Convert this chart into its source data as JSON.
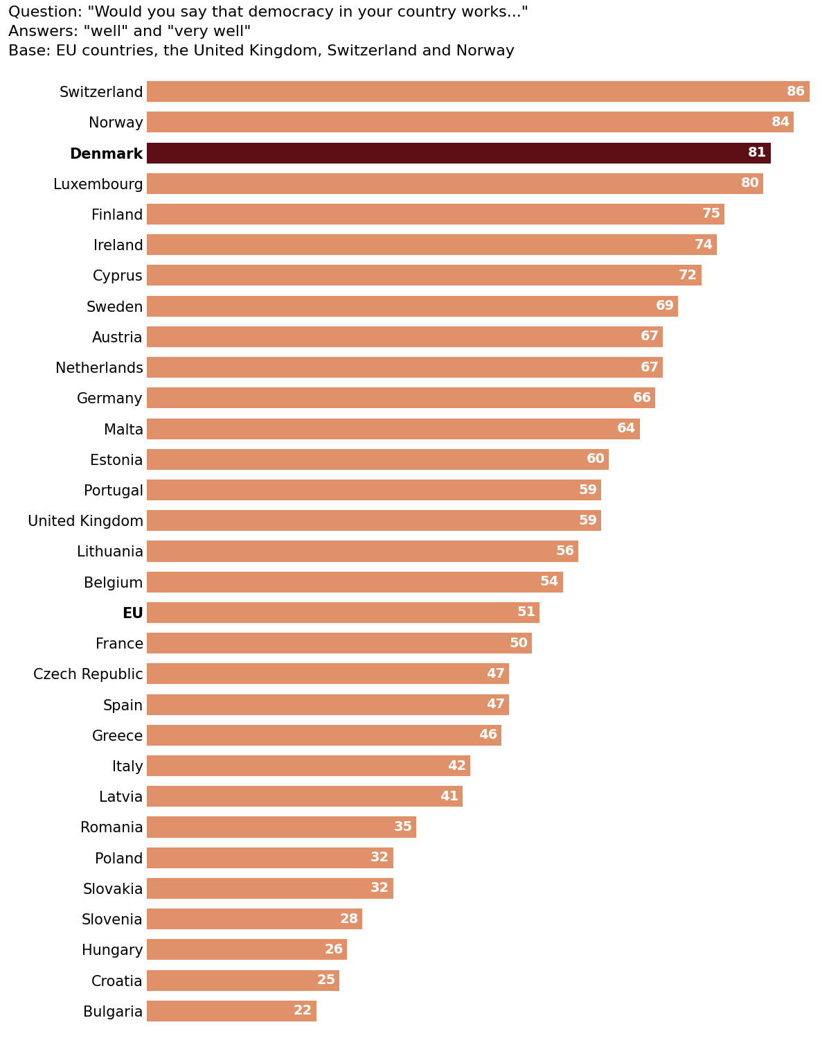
{
  "title_lines": [
    "Question: \"Would you say that democracy in your country works...\"",
    "Answers: \"well\" and \"very well\"",
    "Base: EU countries, the United Kingdom, Switzerland and Norway"
  ],
  "categories": [
    "Switzerland",
    "Norway",
    "Denmark",
    "Luxembourg",
    "Finland",
    "Ireland",
    "Cyprus",
    "Sweden",
    "Austria",
    "Netherlands",
    "Germany",
    "Malta",
    "Estonia",
    "Portugal",
    "United Kingdom",
    "Lithuania",
    "Belgium",
    "EU",
    "France",
    "Czech Republic",
    "Spain",
    "Greece",
    "Italy",
    "Latvia",
    "Romania",
    "Poland",
    "Slovakia",
    "Slovenia",
    "Hungary",
    "Croatia",
    "Bulgaria"
  ],
  "values": [
    86,
    84,
    81,
    80,
    75,
    74,
    72,
    69,
    67,
    67,
    66,
    64,
    60,
    59,
    59,
    56,
    54,
    51,
    50,
    47,
    47,
    46,
    42,
    41,
    35,
    32,
    32,
    28,
    26,
    25,
    22
  ],
  "bar_color_default": "#E0916A",
  "bar_color_highlight": "#5C0F14",
  "highlight_index": 2,
  "bold_indices": [
    2,
    17
  ],
  "label_color": "#ffffff",
  "background_color": "#ffffff",
  "title_fontsize": 16,
  "tick_fontsize": 15,
  "value_fontsize": 14,
  "bar_height": 0.68
}
